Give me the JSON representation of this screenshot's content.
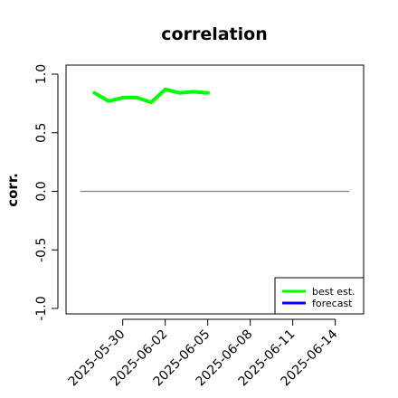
{
  "chart_data": {
    "type": "line",
    "title": "correlation",
    "xlabel": "",
    "ylabel": "corr.",
    "ylim": [
      -1.0,
      1.0
    ],
    "yticks": [
      -1.0,
      -0.5,
      0.0,
      0.5,
      1.0
    ],
    "ytick_labels": [
      "-1.0",
      "-0.5",
      "0.0",
      "0.5",
      "1.0"
    ],
    "xlim": [
      "2025-05-26",
      "2025-06-16"
    ],
    "xticks": [
      "2025-05-30",
      "2025-06-02",
      "2025-06-05",
      "2025-06-08",
      "2025-06-11",
      "2025-06-14"
    ],
    "xtick_labels": [
      "2025-05-30",
      "2025-06-02",
      "2025-06-05",
      "2025-06-08",
      "2025-06-11",
      "2025-06-14"
    ],
    "highlighted_xtick": "2025-06-05",
    "highlight_color": "#228b22",
    "reference_line": {
      "y": 0.0,
      "x_start": "2025-05-27",
      "x_end": "2025-06-15",
      "color": "#808080"
    },
    "grid": false,
    "legend_position": "bottom-right",
    "series": [
      {
        "name": "best est.",
        "color": "#00ff00",
        "x": [
          "2025-05-28",
          "2025-05-29",
          "2025-05-30",
          "2025-05-31",
          "2025-06-01",
          "2025-06-02",
          "2025-06-03",
          "2025-06-04",
          "2025-06-05"
        ],
        "y": [
          0.84,
          0.77,
          0.8,
          0.8,
          0.76,
          0.87,
          0.84,
          0.85,
          0.84
        ]
      },
      {
        "name": "forecast",
        "color": "#0000ff",
        "x": [],
        "y": []
      }
    ]
  }
}
